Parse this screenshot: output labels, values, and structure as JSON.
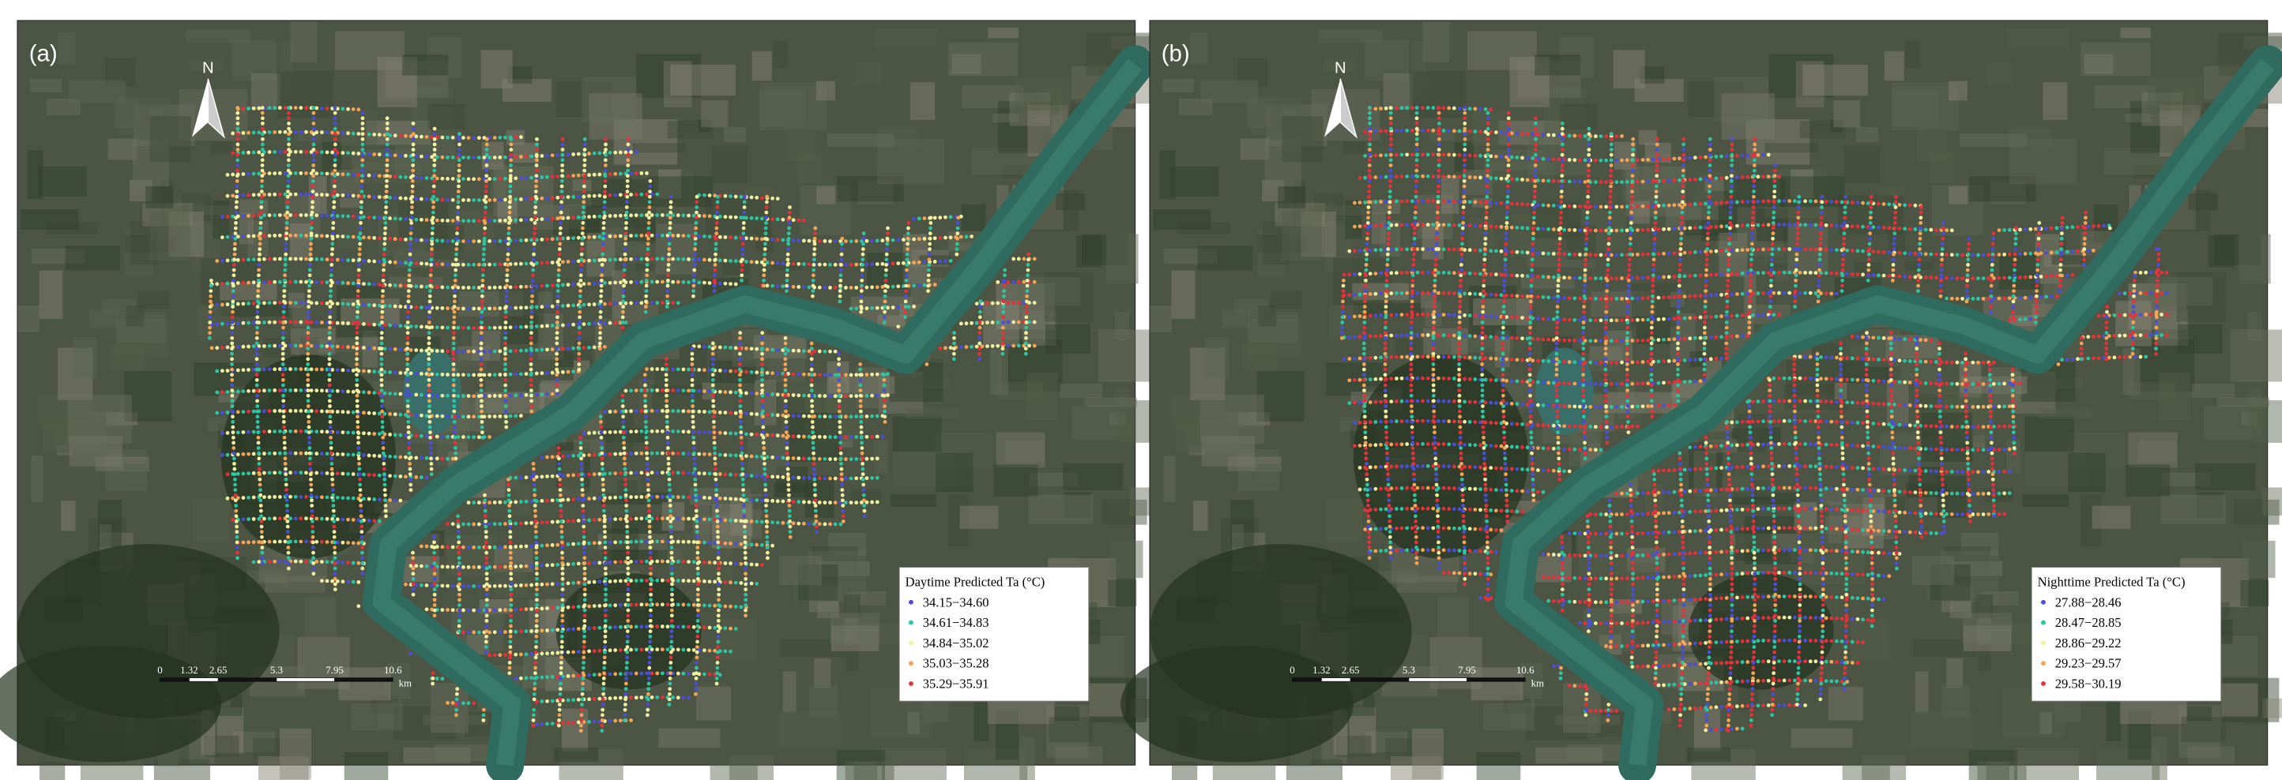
{
  "panels": [
    {
      "label": "(a)",
      "north": "N",
      "legend": {
        "title": "Daytime Predicted Ta (°C)",
        "items": [
          {
            "label": "34.15−34.60",
            "color": "#4b4fd6"
          },
          {
            "label": "34.61−34.83",
            "color": "#2fc4a2"
          },
          {
            "label": "34.84−35.02",
            "color": "#f3f0a2"
          },
          {
            "label": "35.03−35.28",
            "color": "#f6a455"
          },
          {
            "label": "35.29−35.91",
            "color": "#e5323c"
          }
        ]
      },
      "scale": {
        "ticks": [
          "0",
          "1.32",
          "2.65",
          "5.3",
          "7.95",
          "10.6"
        ],
        "unit": "km"
      }
    },
    {
      "label": "(b)",
      "north": "N",
      "legend": {
        "title": "Nighttime Predicted Ta (°C)",
        "items": [
          {
            "label": "27.88−28.46",
            "color": "#4b4fd6"
          },
          {
            "label": "28.47−28.85",
            "color": "#2fc4a2"
          },
          {
            "label": "28.86−29.22",
            "color": "#f3f0a2"
          },
          {
            "label": "29.23−29.57",
            "color": "#f6a455"
          },
          {
            "label": "29.58−30.19",
            "color": "#e5323c"
          }
        ]
      },
      "scale": {
        "ticks": [
          "0",
          "1.32",
          "2.65",
          "5.3",
          "7.95",
          "10.6"
        ],
        "unit": "km"
      }
    }
  ]
}
